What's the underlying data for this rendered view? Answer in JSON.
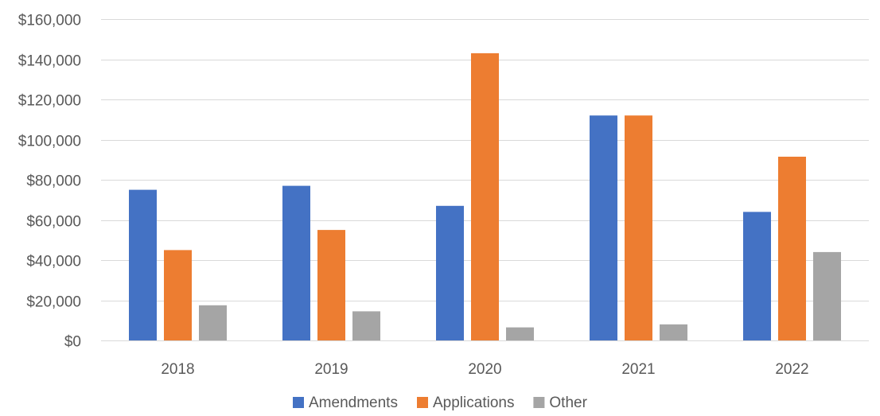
{
  "chart_data": {
    "type": "bar",
    "categories": [
      "2018",
      "2019",
      "2020",
      "2021",
      "2022"
    ],
    "series": [
      {
        "name": "Amendments",
        "color": "#4472c4",
        "values": [
          75000,
          77000,
          67000,
          112000,
          64000
        ]
      },
      {
        "name": "Applications",
        "color": "#ed7d31",
        "values": [
          45000,
          55000,
          143000,
          112000,
          91500
        ]
      },
      {
        "name": "Other",
        "color": "#a5a5a5",
        "values": [
          17500,
          14500,
          6500,
          8000,
          44000
        ]
      }
    ],
    "ylim": [
      0,
      160000
    ],
    "yticks": [
      0,
      20000,
      40000,
      60000,
      80000,
      100000,
      120000,
      140000,
      160000
    ],
    "ytick_labels": [
      "$0",
      "$20,000",
      "$40,000",
      "$60,000",
      "$80,000",
      "$100,000",
      "$120,000",
      "$140,000",
      "$160,000"
    ],
    "grid": true,
    "legend": {
      "position": "bottom"
    }
  }
}
